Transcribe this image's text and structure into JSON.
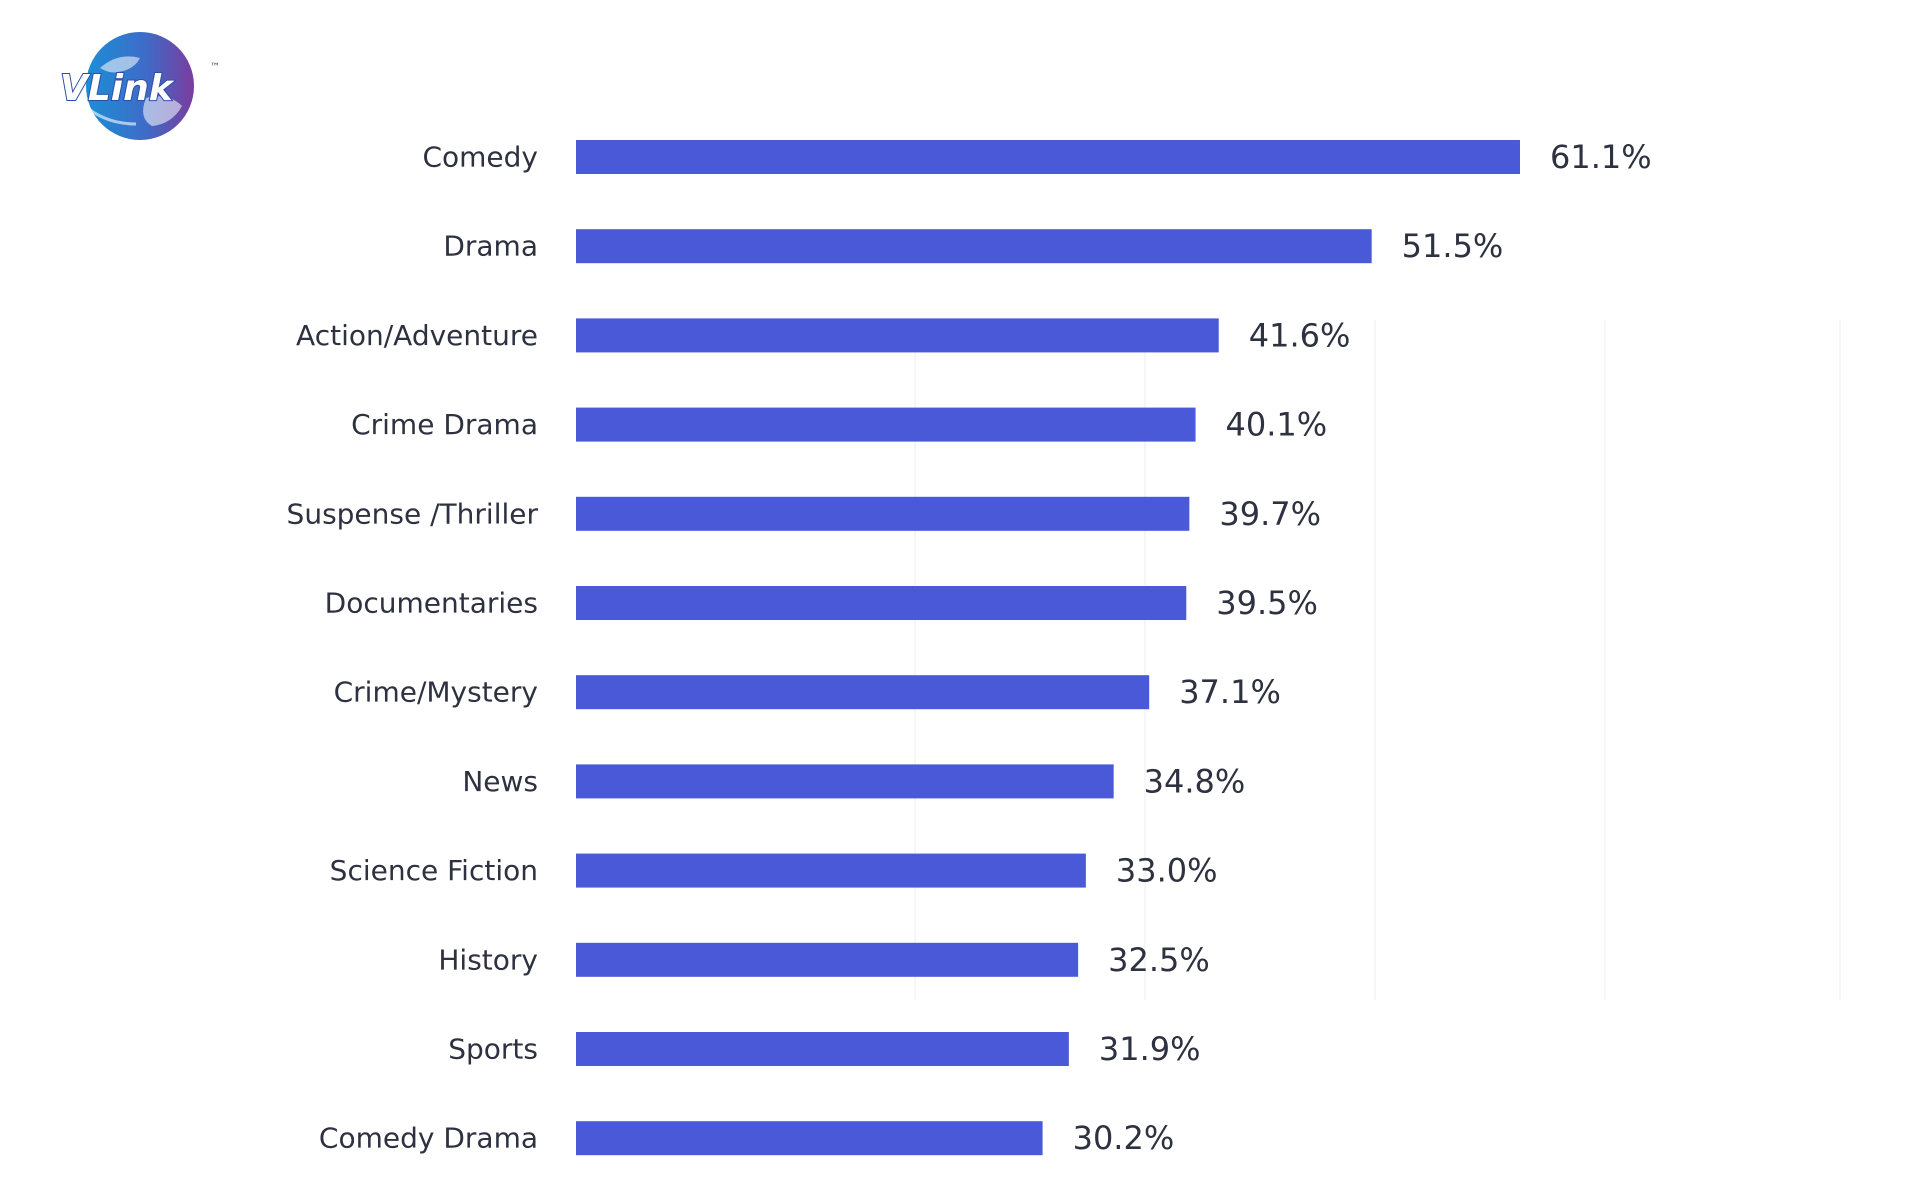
{
  "logo": {
    "text": "VLink",
    "trademark": "™",
    "colors": {
      "globe_blue": "#1b8fd6",
      "globe_purple": "#7a3c9e",
      "text": "#ffffff"
    }
  },
  "colors": {
    "bar": "#4959d8",
    "label": "#2d3140",
    "highlight_label": "#6b1f6e",
    "background": "#ffffff"
  },
  "chart_data": {
    "type": "bar",
    "orientation": "horizontal",
    "categories": [
      "Comedy",
      "Drama",
      "Action/Adventure",
      "Crime Drama",
      "Suspense /Thriller",
      "Documentaries",
      "Crime/Mystery",
      "News",
      "Science Fiction",
      "History",
      "Sports",
      "Comedy Drama"
    ],
    "values": [
      61.1,
      51.5,
      41.6,
      40.1,
      39.7,
      39.5,
      37.1,
      34.8,
      33.0,
      32.5,
      31.9,
      30.2
    ],
    "value_labels": [
      "61.1%",
      "51.5%",
      "41.6%",
      "40.1%",
      "39.7%",
      "39.5%",
      "37.1%",
      "34.8%",
      "33.0%",
      "32.5%",
      "31.9%",
      "30.2%"
    ],
    "highlight_index": 0,
    "grid": true,
    "legend": "none"
  }
}
